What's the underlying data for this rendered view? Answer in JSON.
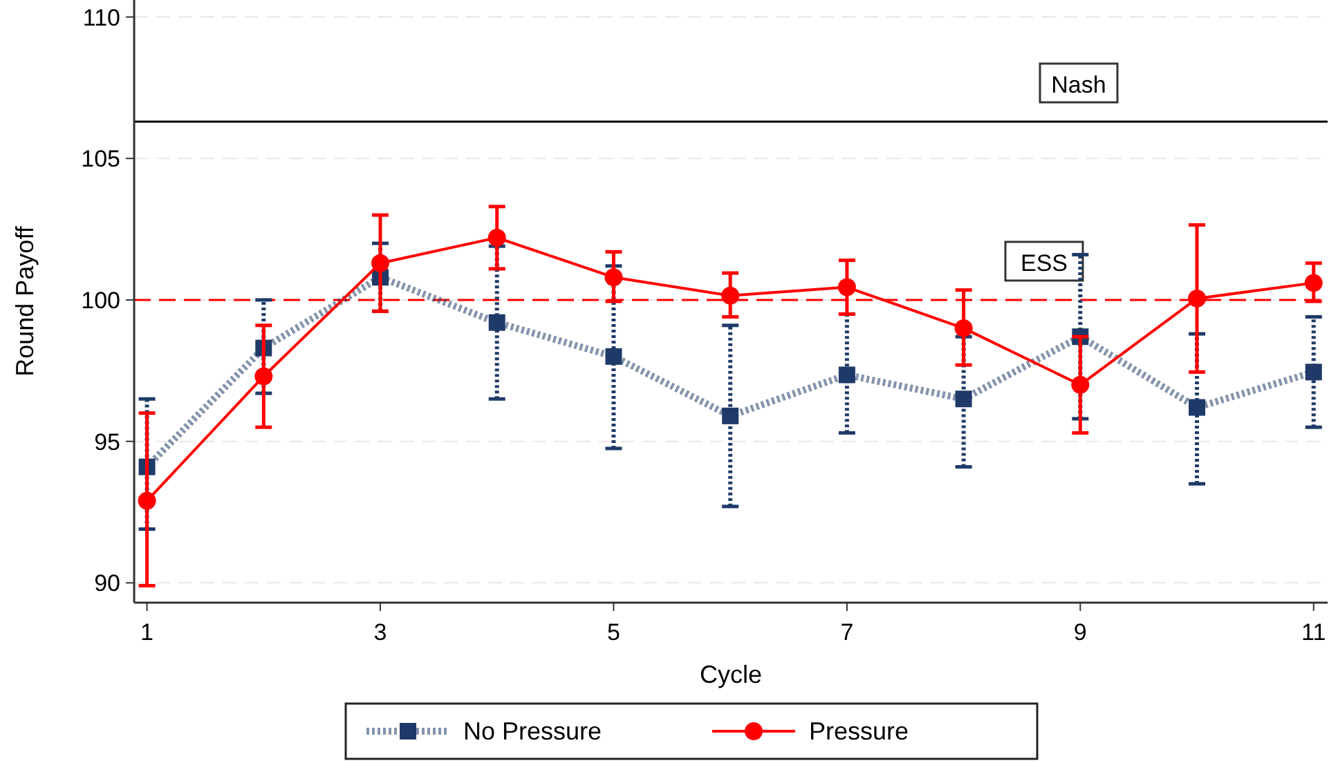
{
  "chart_data": {
    "type": "line",
    "xlabel": "Cycle",
    "ylabel": "Round Payoff",
    "x": [
      1,
      2,
      3,
      4,
      5,
      6,
      7,
      8,
      9,
      10,
      11
    ],
    "xlim": [
      0.89,
      11.12
    ],
    "ylim": [
      89.3,
      110.6
    ],
    "xticks": [
      1,
      3,
      5,
      7,
      9,
      11
    ],
    "yticks": [
      90,
      95,
      100,
      105,
      110
    ],
    "grid": "y",
    "legend": "bottom",
    "series": [
      {
        "name": "No Pressure",
        "color": "#1f3a68",
        "marker": "square",
        "line_style": "dotted",
        "values": [
          94.1,
          98.3,
          100.8,
          99.2,
          98.0,
          95.9,
          97.35,
          96.5,
          98.7,
          96.2,
          97.45
        ],
        "errors": [
          [
            91.9,
            96.5
          ],
          [
            96.7,
            100.0
          ],
          [
            99.6,
            102.0
          ],
          [
            96.5,
            101.9
          ],
          [
            94.75,
            101.2
          ],
          [
            92.7,
            99.1
          ],
          [
            95.3,
            99.5
          ],
          [
            94.1,
            98.7
          ],
          [
            95.8,
            101.6
          ],
          [
            93.5,
            98.8
          ],
          [
            95.5,
            99.4
          ]
        ]
      },
      {
        "name": "Pressure",
        "color": "#ff0000",
        "marker": "circle",
        "line_style": "solid",
        "values": [
          92.9,
          97.3,
          101.3,
          102.2,
          100.8,
          100.15,
          100.45,
          99.0,
          97.0,
          100.05,
          100.6
        ],
        "errors": [
          [
            89.9,
            96.0
          ],
          [
            95.5,
            99.1
          ],
          [
            99.6,
            103.0
          ],
          [
            101.1,
            103.3
          ],
          [
            99.95,
            101.7
          ],
          [
            99.4,
            100.95
          ],
          [
            99.5,
            101.4
          ],
          [
            97.7,
            100.35
          ],
          [
            95.3,
            98.7
          ],
          [
            97.45,
            102.65
          ],
          [
            99.95,
            101.3
          ]
        ]
      }
    ],
    "ref_lines": [
      {
        "axis": "y",
        "value": 106.3,
        "label": "Nash",
        "color": "#000000",
        "line_style": "solid"
      },
      {
        "axis": "y",
        "value": 100,
        "label": "ESS",
        "color": "#ff0000",
        "line_style": "dashed"
      }
    ]
  }
}
